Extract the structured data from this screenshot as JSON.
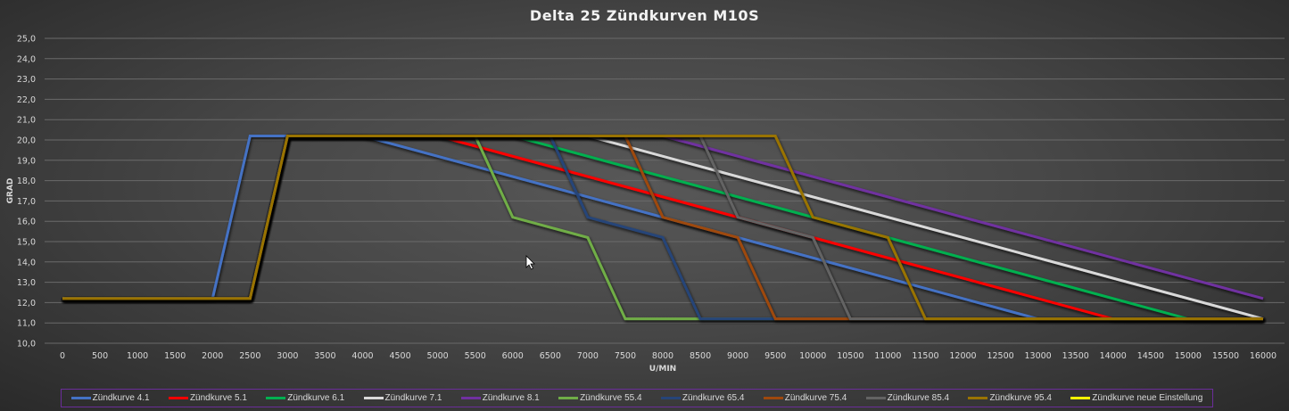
{
  "chart_data": {
    "type": "line",
    "title": "Delta 25 Zündkurven M10S",
    "xlabel": "U/MIN",
    "ylabel": "GRAD",
    "xlim": [
      0,
      16000
    ],
    "ylim": [
      10,
      25
    ],
    "x_ticks": [
      "0",
      "500",
      "1000",
      "1500",
      "2000",
      "2500",
      "3000",
      "3500",
      "4000",
      "4500",
      "5000",
      "5500",
      "6000",
      "6500",
      "7000",
      "7500",
      "8000",
      "8500",
      "9000",
      "9500",
      "10000",
      "10500",
      "11000",
      "11500",
      "12000",
      "12500",
      "13000",
      "13500",
      "14000",
      "14500",
      "15000",
      "15500",
      "16000"
    ],
    "y_ticks": [
      "10,0",
      "11,0",
      "12,0",
      "13,0",
      "14,0",
      "15,0",
      "16,0",
      "17,0",
      "18,0",
      "19,0",
      "20,0",
      "21,0",
      "22,0",
      "23,0",
      "24,0",
      "25,0"
    ],
    "grid": true,
    "legend_placement": "bottom",
    "series": [
      {
        "name": "Zündkurve 4.1",
        "color": "#4472C4",
        "points": [
          [
            0,
            12.2
          ],
          [
            2000,
            12.2
          ],
          [
            2500,
            20.2
          ],
          [
            4000,
            20.2
          ],
          [
            13000,
            11.2
          ],
          [
            16000,
            11.2
          ]
        ]
      },
      {
        "name": "Zündkurve 5.1",
        "color": "#FF0000",
        "points": [
          [
            0,
            12.2
          ],
          [
            2500,
            12.2
          ],
          [
            3000,
            20.2
          ],
          [
            5000,
            20.2
          ],
          [
            14000,
            11.2
          ],
          [
            16000,
            11.2
          ]
        ]
      },
      {
        "name": "Zündkurve 6.1",
        "color": "#00B050",
        "points": [
          [
            0,
            12.2
          ],
          [
            2500,
            12.2
          ],
          [
            3000,
            20.2
          ],
          [
            6000,
            20.2
          ],
          [
            15000,
            11.2
          ],
          [
            16000,
            11.2
          ]
        ]
      },
      {
        "name": "Zündkurve 7.1",
        "color": "#D9D9D9",
        "points": [
          [
            0,
            12.2
          ],
          [
            2500,
            12.2
          ],
          [
            3000,
            20.2
          ],
          [
            7000,
            20.2
          ],
          [
            16000,
            11.2
          ]
        ]
      },
      {
        "name": "Zündkurve 8.1",
        "color": "#7030A0",
        "points": [
          [
            0,
            12.2
          ],
          [
            2500,
            12.2
          ],
          [
            3000,
            20.2
          ],
          [
            8000,
            20.2
          ],
          [
            16000,
            12.2
          ]
        ]
      },
      {
        "name": "Zündkurve 55.4",
        "color": "#70AD47",
        "points": [
          [
            0,
            12.2
          ],
          [
            2500,
            12.2
          ],
          [
            3000,
            20.2
          ],
          [
            5500,
            20.2
          ],
          [
            6000,
            16.2
          ],
          [
            7000,
            15.2
          ],
          [
            7500,
            11.2
          ],
          [
            16000,
            11.2
          ]
        ]
      },
      {
        "name": "Zündkurve 65.4",
        "color": "#264478",
        "points": [
          [
            0,
            12.2
          ],
          [
            2500,
            12.2
          ],
          [
            3000,
            20.2
          ],
          [
            6500,
            20.2
          ],
          [
            7000,
            16.2
          ],
          [
            8000,
            15.2
          ],
          [
            8500,
            11.2
          ],
          [
            16000,
            11.2
          ]
        ]
      },
      {
        "name": "Zündkurve 75.4",
        "color": "#9E480E",
        "points": [
          [
            0,
            12.2
          ],
          [
            2500,
            12.2
          ],
          [
            3000,
            20.2
          ],
          [
            7500,
            20.2
          ],
          [
            8000,
            16.2
          ],
          [
            9000,
            15.2
          ],
          [
            9500,
            11.2
          ],
          [
            16000,
            11.2
          ]
        ]
      },
      {
        "name": "Zündkurve 85.4",
        "color": "#636363",
        "points": [
          [
            0,
            12.2
          ],
          [
            2500,
            12.2
          ],
          [
            3000,
            20.2
          ],
          [
            8500,
            20.2
          ],
          [
            9000,
            16.2
          ],
          [
            10000,
            15.2
          ],
          [
            10500,
            11.2
          ],
          [
            16000,
            11.2
          ]
        ]
      },
      {
        "name": "Zündkurve 95.4",
        "color": "#997300",
        "points": [
          [
            0,
            12.2
          ],
          [
            2500,
            12.2
          ],
          [
            3000,
            20.2
          ],
          [
            9500,
            20.2
          ],
          [
            10000,
            16.2
          ],
          [
            11000,
            15.2
          ],
          [
            11500,
            11.2
          ],
          [
            16000,
            11.2
          ]
        ]
      },
      {
        "name": "Zündkurve neue Einstellung",
        "color": "#FFFF00",
        "points": []
      }
    ]
  }
}
